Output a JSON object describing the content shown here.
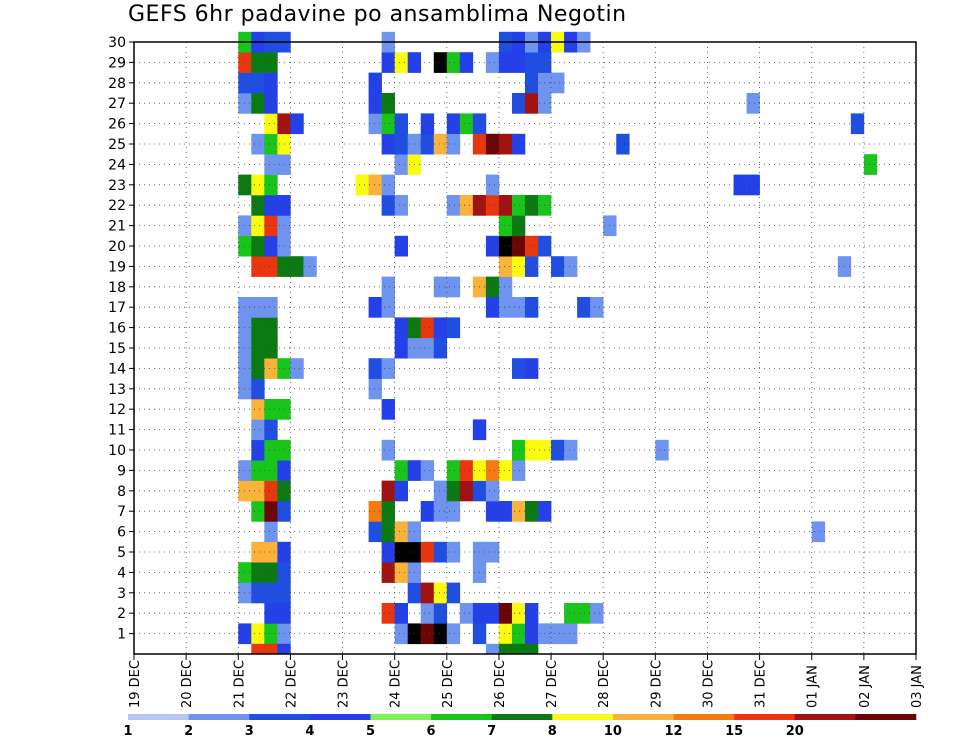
{
  "chart_data": {
    "type": "heatmap",
    "title": "GEFS 6hr padavine po ansamblima Negotin",
    "xlabel": "",
    "ylabel": "",
    "x_ticks": [
      "19 DEC",
      "20 DEC",
      "21 DEC",
      "22 DEC",
      "23 DEC",
      "24 DEC",
      "25 DEC",
      "26 DEC",
      "27 DEC",
      "28 DEC",
      "29 DEC",
      "30 DEC",
      "31 DEC",
      "01 JAN",
      "02 JAN",
      "03 JAN"
    ],
    "y_ticks": [
      1,
      2,
      3,
      4,
      5,
      6,
      7,
      8,
      9,
      10,
      11,
      12,
      13,
      14,
      15,
      16,
      17,
      18,
      19,
      20,
      21,
      22,
      23,
      24,
      25,
      26,
      27,
      28,
      29,
      30
    ],
    "x_steps_per_day": 4,
    "xlim_steps": [
      0,
      60
    ],
    "ylim": [
      0,
      30
    ],
    "grid": true,
    "colorbar": {
      "labels": [
        "1",
        "2",
        "3",
        "4",
        "5",
        "6",
        "7",
        "8",
        "10",
        "12",
        "15",
        "20"
      ],
      "colors": [
        "#b5c8f7",
        "#6e94f0",
        "#1f4ee0",
        "#2440e8",
        "#7ef05a",
        "#19c41b",
        "#0c7a12",
        "#fbfb10",
        "#f9b23a",
        "#f57b10",
        "#e8360e",
        "#a21210",
        "#6b0606"
      ]
    },
    "members": [
      {
        "y": 1,
        "cells": [
          [
            8,
            3
          ],
          [
            9,
            7
          ],
          [
            10,
            5
          ],
          [
            11,
            1
          ],
          [
            20,
            1
          ],
          [
            21,
            13
          ],
          [
            22,
            12
          ],
          [
            23,
            13
          ],
          [
            24,
            1
          ],
          [
            26,
            2
          ],
          [
            28,
            7
          ],
          [
            29,
            5
          ],
          [
            30,
            3
          ],
          [
            31,
            1
          ],
          [
            32,
            1
          ],
          [
            33,
            1
          ]
        ]
      },
      {
        "y": 2,
        "cells": [
          [
            10,
            3
          ],
          [
            11,
            3
          ],
          [
            19,
            10
          ],
          [
            20,
            3
          ],
          [
            22,
            1
          ],
          [
            23,
            2
          ],
          [
            25,
            1
          ],
          [
            26,
            3
          ],
          [
            27,
            3
          ],
          [
            28,
            12
          ],
          [
            29,
            7
          ],
          [
            30,
            3
          ],
          [
            33,
            5
          ],
          [
            34,
            5
          ],
          [
            35,
            1
          ]
        ]
      },
      {
        "y": 3,
        "cells": [
          [
            8,
            1
          ],
          [
            9,
            2
          ],
          [
            10,
            2
          ],
          [
            11,
            2
          ],
          [
            21,
            2
          ],
          [
            22,
            11
          ],
          [
            23,
            7
          ],
          [
            24,
            2
          ]
        ]
      },
      {
        "y": 4,
        "cells": [
          [
            8,
            5
          ],
          [
            9,
            6
          ],
          [
            10,
            6
          ],
          [
            11,
            2
          ],
          [
            19,
            11
          ],
          [
            20,
            8
          ],
          [
            21,
            1
          ],
          [
            26,
            1
          ]
        ]
      },
      {
        "y": 5,
        "cells": [
          [
            9,
            8
          ],
          [
            10,
            8
          ],
          [
            11,
            3
          ],
          [
            19,
            3
          ],
          [
            20,
            13
          ],
          [
            21,
            13
          ],
          [
            22,
            10
          ],
          [
            23,
            2
          ],
          [
            24,
            1
          ],
          [
            26,
            1
          ],
          [
            27,
            1
          ]
        ]
      },
      {
        "y": 6,
        "cells": [
          [
            10,
            1
          ],
          [
            18,
            2
          ],
          [
            19,
            6
          ],
          [
            20,
            8
          ],
          [
            21,
            1
          ],
          [
            52,
            1
          ]
        ]
      },
      {
        "y": 7,
        "cells": [
          [
            9,
            5
          ],
          [
            10,
            12
          ],
          [
            11,
            2
          ],
          [
            18,
            9
          ],
          [
            19,
            6
          ],
          [
            22,
            3
          ],
          [
            23,
            1
          ],
          [
            24,
            1
          ],
          [
            27,
            3
          ],
          [
            28,
            3
          ],
          [
            29,
            8
          ],
          [
            30,
            6
          ],
          [
            31,
            3
          ]
        ]
      },
      {
        "y": 8,
        "cells": [
          [
            8,
            8
          ],
          [
            9,
            8
          ],
          [
            10,
            10
          ],
          [
            11,
            6
          ],
          [
            19,
            11
          ],
          [
            20,
            3
          ],
          [
            23,
            1
          ],
          [
            24,
            6
          ],
          [
            25,
            11
          ],
          [
            26,
            2
          ],
          [
            27,
            1
          ]
        ]
      },
      {
        "y": 9,
        "cells": [
          [
            8,
            1
          ],
          [
            9,
            5
          ],
          [
            10,
            5
          ],
          [
            11,
            3
          ],
          [
            20,
            5
          ],
          [
            21,
            3
          ],
          [
            22,
            1
          ],
          [
            24,
            5
          ],
          [
            25,
            10
          ],
          [
            26,
            7
          ],
          [
            27,
            9
          ],
          [
            28,
            7
          ],
          [
            29,
            1
          ]
        ]
      },
      {
        "y": 10,
        "cells": [
          [
            9,
            3
          ],
          [
            10,
            5
          ],
          [
            11,
            5
          ],
          [
            19,
            1
          ],
          [
            29,
            5
          ],
          [
            30,
            7
          ],
          [
            31,
            7
          ],
          [
            32,
            2
          ],
          [
            33,
            1
          ],
          [
            40,
            1
          ]
        ]
      },
      {
        "y": 11,
        "cells": [
          [
            9,
            1
          ],
          [
            10,
            2
          ],
          [
            26,
            3
          ]
        ]
      },
      {
        "y": 12,
        "cells": [
          [
            9,
            8
          ],
          [
            10,
            5
          ],
          [
            11,
            5
          ],
          [
            19,
            3
          ]
        ]
      },
      {
        "y": 13,
        "cells": [
          [
            8,
            1
          ],
          [
            9,
            2
          ],
          [
            18,
            1
          ]
        ]
      },
      {
        "y": 14,
        "cells": [
          [
            8,
            1
          ],
          [
            9,
            6
          ],
          [
            10,
            8
          ],
          [
            11,
            5
          ],
          [
            12,
            1
          ],
          [
            18,
            2
          ],
          [
            19,
            1
          ],
          [
            29,
            2
          ],
          [
            30,
            3
          ]
        ]
      },
      {
        "y": 15,
        "cells": [
          [
            8,
            1
          ],
          [
            9,
            6
          ],
          [
            10,
            6
          ],
          [
            20,
            3
          ],
          [
            21,
            1
          ],
          [
            22,
            1
          ],
          [
            23,
            2
          ]
        ]
      },
      {
        "y": 16,
        "cells": [
          [
            8,
            1
          ],
          [
            9,
            6
          ],
          [
            10,
            6
          ],
          [
            20,
            3
          ],
          [
            21,
            6
          ],
          [
            22,
            10
          ],
          [
            23,
            3
          ],
          [
            24,
            2
          ]
        ]
      },
      {
        "y": 17,
        "cells": [
          [
            8,
            1
          ],
          [
            9,
            1
          ],
          [
            10,
            1
          ],
          [
            18,
            3
          ],
          [
            19,
            1
          ],
          [
            27,
            3
          ],
          [
            28,
            1
          ],
          [
            29,
            1
          ],
          [
            30,
            2
          ],
          [
            34,
            2
          ],
          [
            35,
            1
          ]
        ]
      },
      {
        "y": 18,
        "cells": [
          [
            19,
            1
          ],
          [
            23,
            1
          ],
          [
            24,
            1
          ],
          [
            26,
            8
          ],
          [
            27,
            6
          ],
          [
            28,
            1
          ]
        ]
      },
      {
        "y": 19,
        "cells": [
          [
            9,
            10
          ],
          [
            10,
            10
          ],
          [
            11,
            6
          ],
          [
            12,
            6
          ],
          [
            13,
            1
          ],
          [
            28,
            8
          ],
          [
            29,
            7
          ],
          [
            30,
            2
          ],
          [
            32,
            2
          ],
          [
            33,
            1
          ],
          [
            54,
            1
          ]
        ]
      },
      {
        "y": 20,
        "cells": [
          [
            8,
            5
          ],
          [
            9,
            6
          ],
          [
            10,
            3
          ],
          [
            11,
            1
          ],
          [
            20,
            3
          ],
          [
            27,
            3
          ],
          [
            28,
            13
          ],
          [
            29,
            12
          ],
          [
            30,
            10
          ],
          [
            31,
            2
          ]
        ]
      },
      {
        "y": 21,
        "cells": [
          [
            8,
            1
          ],
          [
            9,
            7
          ],
          [
            10,
            10
          ],
          [
            11,
            1
          ],
          [
            28,
            5
          ],
          [
            29,
            6
          ],
          [
            36,
            1
          ]
        ]
      },
      {
        "y": 22,
        "cells": [
          [
            9,
            6
          ],
          [
            10,
            3
          ],
          [
            11,
            3
          ],
          [
            19,
            2
          ],
          [
            20,
            1
          ],
          [
            24,
            1
          ],
          [
            25,
            8
          ],
          [
            26,
            11
          ],
          [
            27,
            10
          ],
          [
            28,
            11
          ],
          [
            29,
            5
          ],
          [
            30,
            6
          ],
          [
            31,
            5
          ]
        ]
      },
      {
        "y": 23,
        "cells": [
          [
            8,
            6
          ],
          [
            9,
            7
          ],
          [
            10,
            5
          ],
          [
            17,
            7
          ],
          [
            18,
            8
          ],
          [
            19,
            1
          ],
          [
            27,
            1
          ],
          [
            46,
            3
          ],
          [
            47,
            3
          ]
        ]
      },
      {
        "y": 24,
        "cells": [
          [
            10,
            1
          ],
          [
            11,
            1
          ],
          [
            20,
            1
          ],
          [
            21,
            7
          ],
          [
            56,
            5
          ]
        ]
      },
      {
        "y": 25,
        "cells": [
          [
            9,
            1
          ],
          [
            10,
            5
          ],
          [
            11,
            7
          ],
          [
            19,
            3
          ],
          [
            20,
            2
          ],
          [
            21,
            1
          ],
          [
            22,
            2
          ],
          [
            23,
            8
          ],
          [
            24,
            1
          ],
          [
            26,
            10
          ],
          [
            27,
            12
          ],
          [
            28,
            11
          ],
          [
            29,
            3
          ],
          [
            37,
            2
          ]
        ]
      },
      {
        "y": 26,
        "cells": [
          [
            10,
            7
          ],
          [
            11,
            11
          ],
          [
            12,
            3
          ],
          [
            18,
            1
          ],
          [
            19,
            5
          ],
          [
            20,
            2
          ],
          [
            22,
            3
          ],
          [
            24,
            3
          ],
          [
            25,
            5
          ],
          [
            26,
            2
          ],
          [
            55,
            2
          ]
        ]
      },
      {
        "y": 27,
        "cells": [
          [
            8,
            1
          ],
          [
            9,
            6
          ],
          [
            10,
            3
          ],
          [
            18,
            3
          ],
          [
            19,
            6
          ],
          [
            29,
            2
          ],
          [
            30,
            11
          ],
          [
            31,
            1
          ],
          [
            47,
            1
          ]
        ]
      },
      {
        "y": 28,
        "cells": [
          [
            8,
            2
          ],
          [
            9,
            2
          ],
          [
            10,
            3
          ],
          [
            18,
            3
          ],
          [
            30,
            2
          ],
          [
            31,
            1
          ],
          [
            32,
            1
          ]
        ]
      },
      {
        "y": 29,
        "cells": [
          [
            8,
            10
          ],
          [
            9,
            6
          ],
          [
            10,
            6
          ],
          [
            19,
            3
          ],
          [
            20,
            7
          ],
          [
            21,
            3
          ],
          [
            23,
            13
          ],
          [
            24,
            5
          ],
          [
            25,
            3
          ],
          [
            27,
            1
          ],
          [
            28,
            3
          ],
          [
            29,
            3
          ],
          [
            30,
            2
          ],
          [
            31,
            2
          ]
        ]
      },
      {
        "y": 30,
        "cells": [
          [
            8,
            5
          ],
          [
            9,
            3
          ],
          [
            10,
            2
          ],
          [
            11,
            2
          ],
          [
            19,
            1
          ],
          [
            28,
            2
          ],
          [
            29,
            3
          ],
          [
            30,
            1
          ],
          [
            31,
            3
          ],
          [
            32,
            7
          ],
          [
            33,
            3
          ],
          [
            34,
            1
          ]
        ]
      },
      {
        "y": 0,
        "cells": [
          [
            9,
            10
          ],
          [
            10,
            10
          ],
          [
            11,
            3
          ],
          [
            27,
            1
          ],
          [
            28,
            6
          ],
          [
            29,
            6
          ],
          [
            30,
            6
          ]
        ]
      }
    ]
  }
}
